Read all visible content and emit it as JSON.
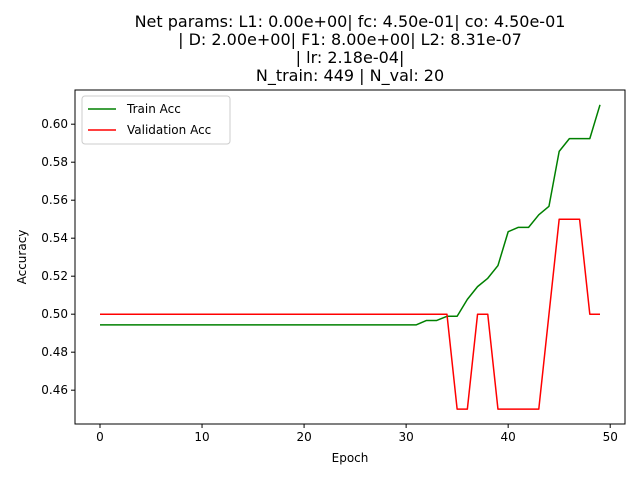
{
  "chart_data": {
    "type": "line",
    "title_lines": [
      "Net params: L1: 0.00e+00| fc: 4.50e-01| co: 4.50e-01",
      "| D: 2.00e+00| F1: 8.00e+00| L2: 8.31e-07",
      "| lr: 2.18e-04|",
      "N_train: 449 | N_val: 20"
    ],
    "xlabel": "Epoch",
    "ylabel": "Accuracy",
    "xlim": [
      -2.45,
      51.45
    ],
    "ylim": [
      0.4422,
      0.618
    ],
    "xticks": [
      0,
      10,
      20,
      30,
      40,
      50
    ],
    "yticks": [
      0.46,
      0.48,
      0.5,
      0.52,
      0.54,
      0.56,
      0.58,
      0.6
    ],
    "legend_position": "upper left",
    "grid": false,
    "series": [
      {
        "name": "Train Acc",
        "color": "#008000",
        "x": [
          0,
          1,
          2,
          3,
          4,
          5,
          6,
          7,
          8,
          9,
          10,
          11,
          12,
          13,
          14,
          15,
          16,
          17,
          18,
          19,
          20,
          21,
          22,
          23,
          24,
          25,
          26,
          27,
          28,
          29,
          30,
          31,
          32,
          33,
          34,
          35,
          36,
          37,
          38,
          39,
          40,
          41,
          42,
          43,
          44,
          45,
          46,
          47,
          48,
          49
        ],
        "values": [
          0.4944,
          0.4944,
          0.4944,
          0.4944,
          0.4944,
          0.4944,
          0.4944,
          0.4944,
          0.4944,
          0.4944,
          0.4944,
          0.4944,
          0.4944,
          0.4944,
          0.4944,
          0.4944,
          0.4944,
          0.4944,
          0.4944,
          0.4944,
          0.4944,
          0.4944,
          0.4944,
          0.4944,
          0.4944,
          0.4944,
          0.4944,
          0.4944,
          0.4944,
          0.4944,
          0.4944,
          0.4944,
          0.4967,
          0.4967,
          0.4989,
          0.4989,
          0.5078,
          0.5145,
          0.5189,
          0.5256,
          0.5434,
          0.5457,
          0.5457,
          0.5523,
          0.5568,
          0.5857,
          0.5924,
          0.5924,
          0.5924,
          0.6102
        ]
      },
      {
        "name": "Validation Acc",
        "color": "#ff0000",
        "x": [
          0,
          1,
          2,
          3,
          4,
          5,
          6,
          7,
          8,
          9,
          10,
          11,
          12,
          13,
          14,
          15,
          16,
          17,
          18,
          19,
          20,
          21,
          22,
          23,
          24,
          25,
          26,
          27,
          28,
          29,
          30,
          31,
          32,
          33,
          34,
          35,
          36,
          37,
          38,
          39,
          40,
          41,
          42,
          43,
          44,
          45,
          46,
          47,
          48,
          49
        ],
        "values": [
          0.5,
          0.5,
          0.5,
          0.5,
          0.5,
          0.5,
          0.5,
          0.5,
          0.5,
          0.5,
          0.5,
          0.5,
          0.5,
          0.5,
          0.5,
          0.5,
          0.5,
          0.5,
          0.5,
          0.5,
          0.5,
          0.5,
          0.5,
          0.5,
          0.5,
          0.5,
          0.5,
          0.5,
          0.5,
          0.5,
          0.5,
          0.5,
          0.5,
          0.5,
          0.5,
          0.45,
          0.45,
          0.5,
          0.5,
          0.45,
          0.45,
          0.45,
          0.45,
          0.45,
          0.5,
          0.55,
          0.55,
          0.55,
          0.5,
          0.5
        ]
      }
    ]
  }
}
